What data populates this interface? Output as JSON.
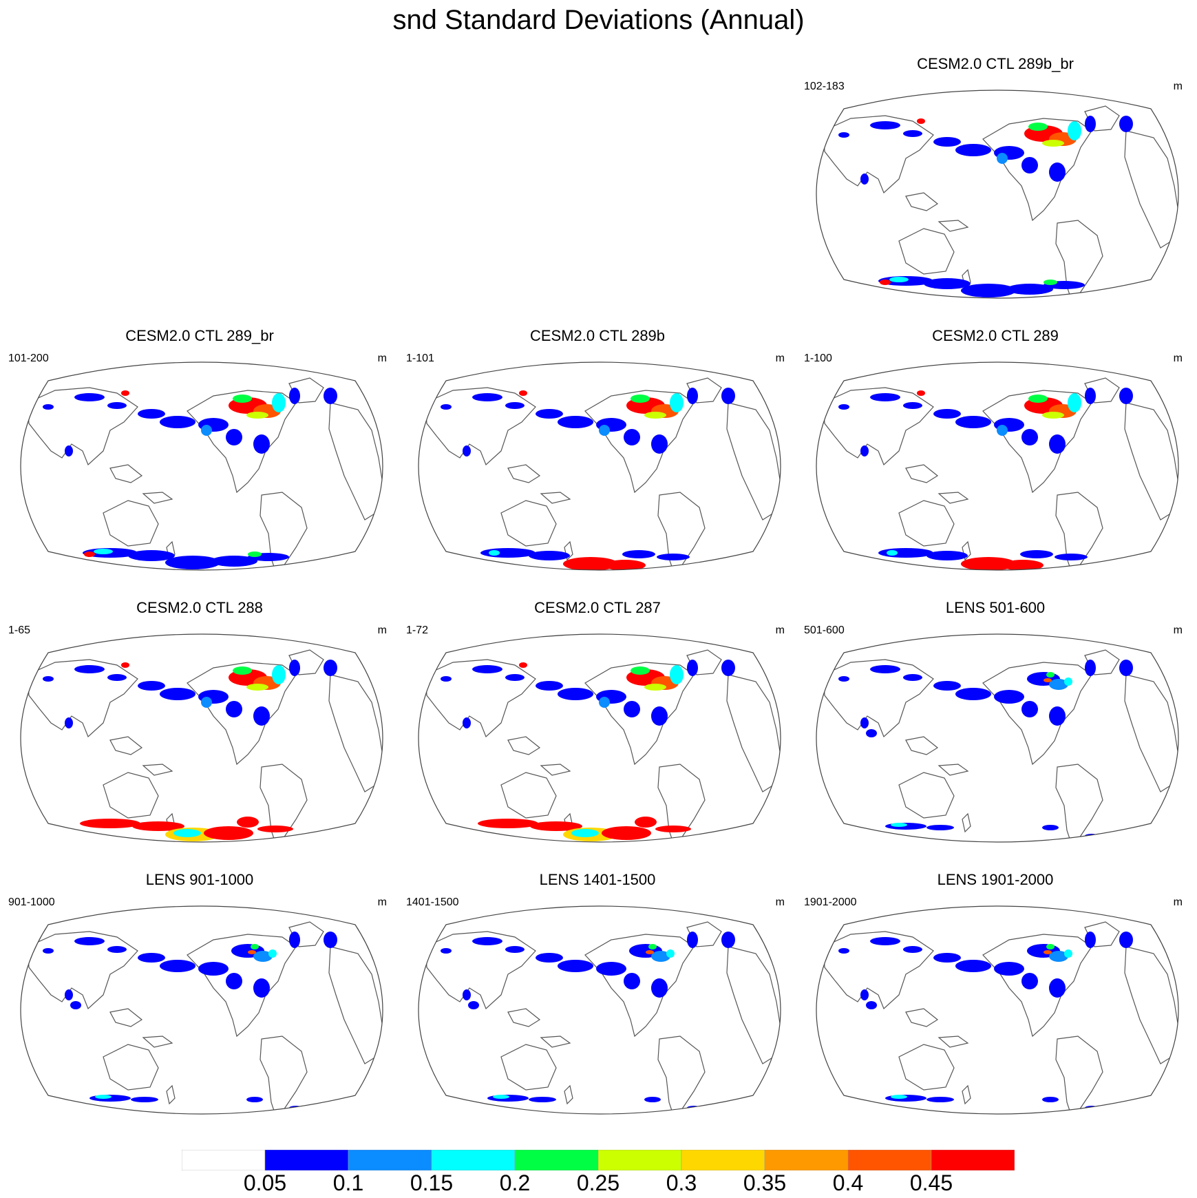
{
  "title": "snd Standard Deviations (Annual)",
  "colors": {
    "blue": "#0000ff",
    "mid_blue": "#0b8cff",
    "cyan": "#00ffff",
    "green": "#00ff44",
    "yellow_green": "#ccff00",
    "gold": "#ffd700",
    "orange": "#ff9900",
    "red_orange": "#ff5500",
    "red": "#ff0000",
    "coast": "#555555"
  },
  "panels": [
    {
      "id": "p289b_br",
      "title": "CESM2.0 CTL 289b_br",
      "range": "102-183",
      "units": "m",
      "antarctic_level": "low",
      "nh_level": "high"
    },
    {
      "id": "p289_br",
      "title": "CESM2.0 CTL 289_br",
      "range": "101-200",
      "units": "m",
      "antarctic_level": "low",
      "nh_level": "high"
    },
    {
      "id": "p289b",
      "title": "CESM2.0 CTL 289b",
      "range": "1-101",
      "units": "m",
      "antarctic_level": "high-east",
      "nh_level": "high"
    },
    {
      "id": "p289",
      "title": "CESM2.0 CTL 289",
      "range": "1-100",
      "units": "m",
      "antarctic_level": "high-east",
      "nh_level": "high"
    },
    {
      "id": "p288",
      "title": "CESM2.0 CTL 288",
      "range": "1-65",
      "units": "m",
      "antarctic_level": "very-high",
      "nh_level": "high"
    },
    {
      "id": "p287",
      "title": "CESM2.0 CTL 287",
      "range": "1-72",
      "units": "m",
      "antarctic_level": "very-high",
      "nh_level": "high"
    },
    {
      "id": "lens501",
      "title": "LENS 501-600",
      "range": "501-600",
      "units": "m",
      "antarctic_level": "lens",
      "nh_level": "medium"
    },
    {
      "id": "lens901",
      "title": "LENS 901-1000",
      "range": "901-1000",
      "units": "m",
      "antarctic_level": "lens",
      "nh_level": "medium"
    },
    {
      "id": "lens1401",
      "title": "LENS 1401-1500",
      "range": "1401-1500",
      "units": "m",
      "antarctic_level": "lens",
      "nh_level": "medium"
    },
    {
      "id": "lens1901",
      "title": "LENS 1901-2000",
      "range": "1901-2000",
      "units": "m",
      "antarctic_level": "lens",
      "nh_level": "medium"
    }
  ],
  "colorbar": {
    "labels": [
      "0.05",
      "0.1",
      "0.15",
      "0.2",
      "0.25",
      "0.3",
      "0.35",
      "0.4",
      "0.45"
    ],
    "colors": [
      "#ffffff",
      "#0000ff",
      "#0b8cff",
      "#00ffff",
      "#00ff44",
      "#ccff00",
      "#ffd700",
      "#ff9900",
      "#ff5500",
      "#ff0000"
    ]
  }
}
